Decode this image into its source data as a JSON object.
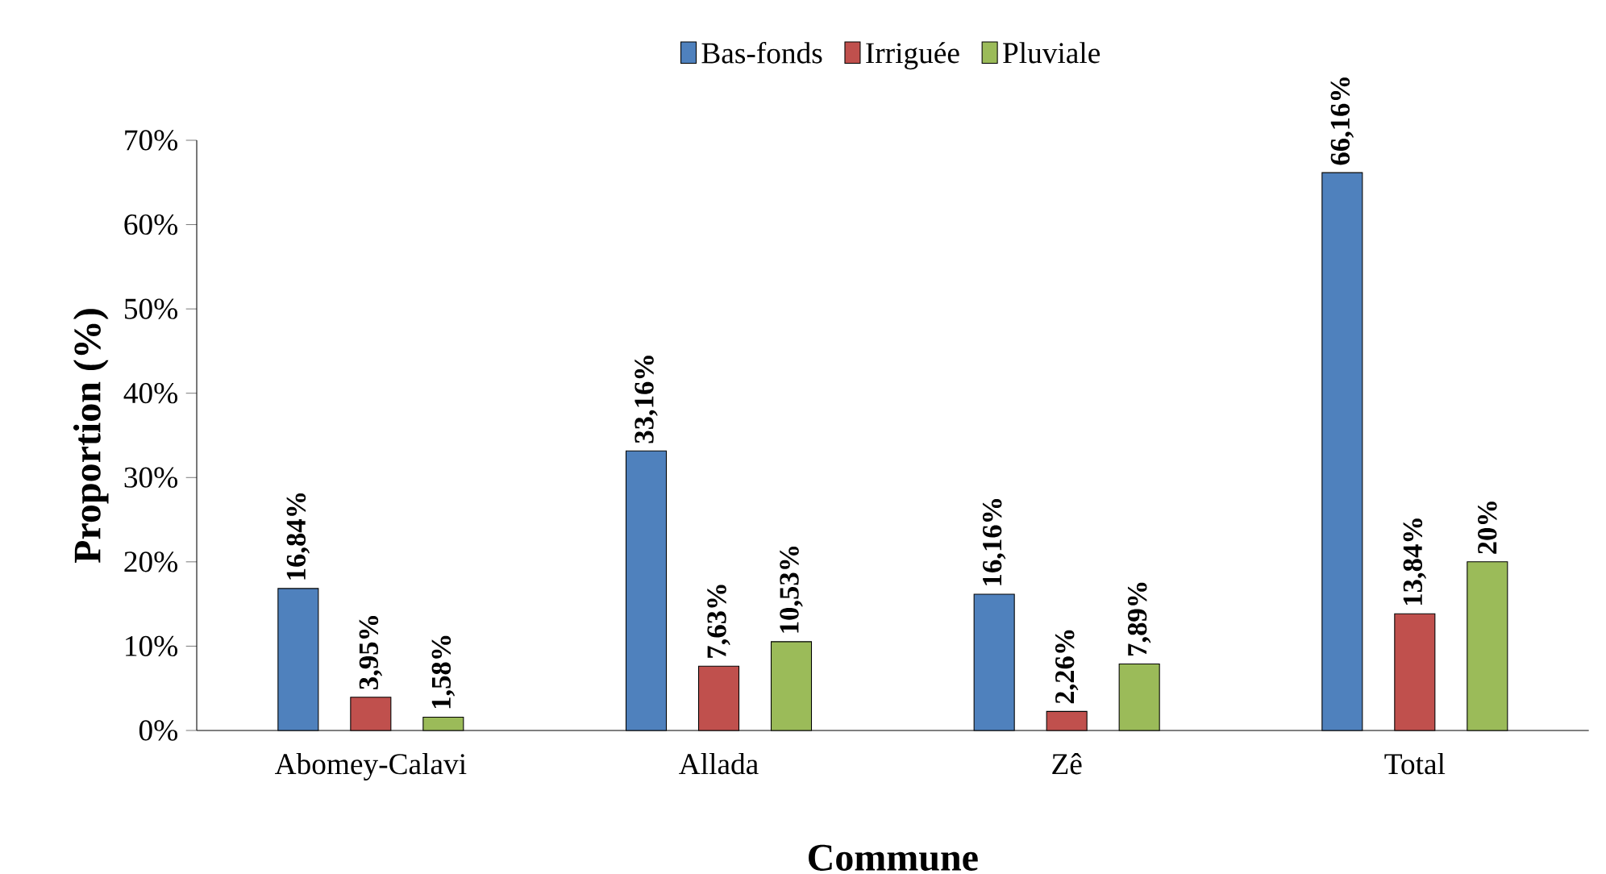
{
  "chart_data": {
    "type": "bar",
    "xlabel": "Commune",
    "ylabel": "Proportion (%)",
    "categories": [
      "Abomey-Calavi",
      "Allada",
      "Zê",
      "Total"
    ],
    "series": [
      {
        "name": "Bas-fonds",
        "color": "#4f81bd",
        "values": [
          16.84,
          33.16,
          16.16,
          66.16
        ],
        "value_labels": [
          "16,84%",
          "33,16%",
          "16,16%",
          "66,16%"
        ]
      },
      {
        "name": "Irriguée",
        "color": "#c0504d",
        "values": [
          3.95,
          7.63,
          2.26,
          13.84
        ],
        "value_labels": [
          "3,95%",
          "7,63%",
          "2,26%",
          "13,84%"
        ]
      },
      {
        "name": "Pluviale",
        "color": "#9bbb59",
        "values": [
          1.58,
          10.53,
          7.89,
          20
        ],
        "value_labels": [
          "1,58%",
          "10,53%",
          "7,89%",
          "20%"
        ]
      }
    ],
    "ylim": [
      0,
      70
    ],
    "yticks": [
      {
        "value": 0,
        "label": "0%"
      },
      {
        "value": 10,
        "label": "10%"
      },
      {
        "value": 20,
        "label": "20%"
      },
      {
        "value": 30,
        "label": "30%"
      },
      {
        "value": 40,
        "label": "40%"
      },
      {
        "value": 50,
        "label": "50%"
      },
      {
        "value": 60,
        "label": "60%"
      },
      {
        "value": 70,
        "label": "70%"
      }
    ],
    "grid": false,
    "legend": "top"
  }
}
